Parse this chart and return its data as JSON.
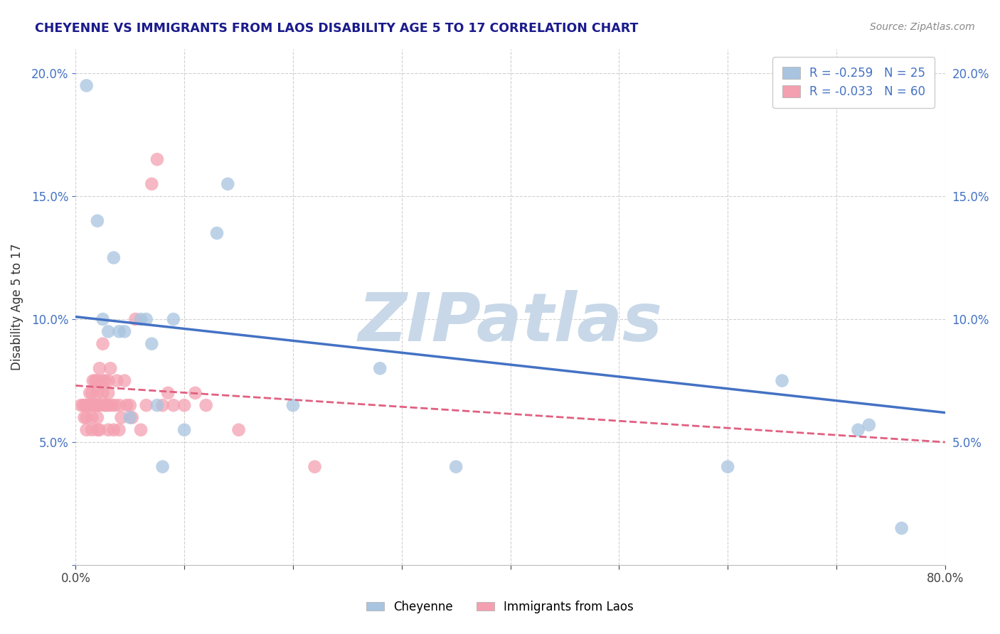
{
  "title": "CHEYENNE VS IMMIGRANTS FROM LAOS DISABILITY AGE 5 TO 17 CORRELATION CHART",
  "source": "Source: ZipAtlas.com",
  "ylabel": "Disability Age 5 to 17",
  "xlim": [
    0.0,
    0.8
  ],
  "ylim": [
    0.0,
    0.21
  ],
  "xticks": [
    0.0,
    0.1,
    0.2,
    0.3,
    0.4,
    0.5,
    0.6,
    0.7,
    0.8
  ],
  "xticklabels": [
    "0.0%",
    "",
    "",
    "",
    "",
    "",
    "",
    "",
    "80.0%"
  ],
  "yticks": [
    0.0,
    0.05,
    0.1,
    0.15,
    0.2
  ],
  "yticklabels": [
    "",
    "5.0%",
    "10.0%",
    "15.0%",
    "20.0%"
  ],
  "cheyenne_R": -0.259,
  "cheyenne_N": 25,
  "laos_R": -0.033,
  "laos_N": 60,
  "cheyenne_color": "#a8c4e0",
  "laos_color": "#f4a0b0",
  "cheyenne_line_color": "#4472c4",
  "laos_line_color": "#e06080",
  "watermark": "ZIPatlas",
  "watermark_color": "#c8d8e8",
  "cheyenne_x": [
    0.01,
    0.02,
    0.025,
    0.03,
    0.035,
    0.04,
    0.045,
    0.05,
    0.06,
    0.065,
    0.07,
    0.075,
    0.08,
    0.09,
    0.1,
    0.13,
    0.14,
    0.2,
    0.28,
    0.35,
    0.6,
    0.65,
    0.72,
    0.73,
    0.76
  ],
  "cheyenne_y": [
    0.195,
    0.14,
    0.1,
    0.095,
    0.125,
    0.095,
    0.095,
    0.06,
    0.1,
    0.1,
    0.09,
    0.065,
    0.04,
    0.1,
    0.055,
    0.135,
    0.155,
    0.065,
    0.08,
    0.04,
    0.04,
    0.075,
    0.055,
    0.057,
    0.015
  ],
  "laos_x": [
    0.005,
    0.007,
    0.008,
    0.009,
    0.01,
    0.01,
    0.01,
    0.012,
    0.013,
    0.015,
    0.015,
    0.015,
    0.015,
    0.016,
    0.017,
    0.018,
    0.019,
    0.02,
    0.02,
    0.02,
    0.02,
    0.02,
    0.022,
    0.022,
    0.022,
    0.025,
    0.025,
    0.025,
    0.026,
    0.027,
    0.028,
    0.03,
    0.03,
    0.03,
    0.03,
    0.032,
    0.033,
    0.035,
    0.036,
    0.038,
    0.04,
    0.04,
    0.042,
    0.045,
    0.047,
    0.05,
    0.052,
    0.055,
    0.06,
    0.065,
    0.07,
    0.075,
    0.08,
    0.085,
    0.09,
    0.1,
    0.11,
    0.12,
    0.15,
    0.22
  ],
  "laos_y": [
    0.065,
    0.065,
    0.06,
    0.065,
    0.055,
    0.06,
    0.065,
    0.065,
    0.07,
    0.055,
    0.06,
    0.065,
    0.07,
    0.075,
    0.065,
    0.075,
    0.065,
    0.055,
    0.06,
    0.065,
    0.07,
    0.075,
    0.055,
    0.065,
    0.08,
    0.07,
    0.075,
    0.09,
    0.065,
    0.075,
    0.065,
    0.055,
    0.065,
    0.07,
    0.075,
    0.08,
    0.065,
    0.055,
    0.065,
    0.075,
    0.055,
    0.065,
    0.06,
    0.075,
    0.065,
    0.065,
    0.06,
    0.1,
    0.055,
    0.065,
    0.155,
    0.165,
    0.065,
    0.07,
    0.065,
    0.065,
    0.07,
    0.065,
    0.055,
    0.04
  ],
  "cheyenne_line_x0": 0.0,
  "cheyenne_line_y0": 0.101,
  "cheyenne_line_x1": 0.8,
  "cheyenne_line_y1": 0.062,
  "laos_line_x0": 0.0,
  "laos_line_y0": 0.073,
  "laos_line_x1": 0.8,
  "laos_line_y1": 0.05
}
